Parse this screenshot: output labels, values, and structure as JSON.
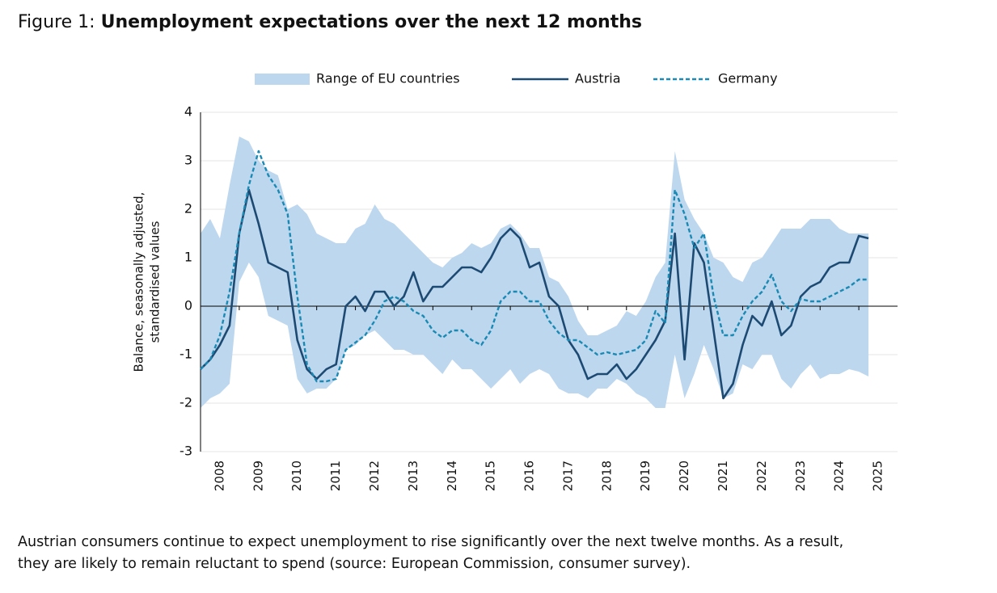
{
  "chart_data": {
    "type": "line",
    "title_prefix": "Figure 1: ",
    "title": "Unemployment expectations over the next 12 months",
    "ylabel": [
      "Balance, seasonally adjusted,",
      "standardised values"
    ],
    "caption": [
      "Austrian consumers continue to expect unemployment to rise significantly over the next twelve months. As a result,",
      "they are likely to remain reluctant to spend (source: European Commission, consumer survey)."
    ],
    "xlim": [
      2008,
      2026
    ],
    "xticks": [
      2008,
      2009,
      2010,
      2011,
      2012,
      2013,
      2014,
      2015,
      2016,
      2017,
      2018,
      2019,
      2020,
      2021,
      2022,
      2023,
      2024,
      2025
    ],
    "ylim": [
      -3,
      4
    ],
    "yticks": [
      -3,
      -2,
      -1,
      0,
      1,
      2,
      3,
      4
    ],
    "grid": true,
    "legend": "top",
    "x": [
      2008,
      2008.25,
      2008.5,
      2008.75,
      2009,
      2009.25,
      2009.5,
      2009.75,
      2010,
      2010.25,
      2010.5,
      2010.75,
      2011,
      2011.25,
      2011.5,
      2011.75,
      2012,
      2012.25,
      2012.5,
      2012.75,
      2013,
      2013.25,
      2013.5,
      2013.75,
      2014,
      2014.25,
      2014.5,
      2014.75,
      2015,
      2015.25,
      2015.5,
      2015.75,
      2016,
      2016.25,
      2016.5,
      2016.75,
      2017,
      2017.25,
      2017.5,
      2017.75,
      2018,
      2018.25,
      2018.5,
      2018.75,
      2019,
      2019.25,
      2019.5,
      2019.75,
      2020,
      2020.25,
      2020.5,
      2020.75,
      2021,
      2021.25,
      2021.5,
      2021.75,
      2022,
      2022.25,
      2022.5,
      2022.75,
      2023,
      2023.25,
      2023.5,
      2023.75,
      2024,
      2024.25,
      2024.5,
      2024.75,
      2025,
      2025.25
    ],
    "range": {
      "name": "Range of EU countries",
      "color": "#bdd7ee",
      "high": [
        1.5,
        1.8,
        1.4,
        2.5,
        3.5,
        3.4,
        3.0,
        2.8,
        2.7,
        2.0,
        2.1,
        1.9,
        1.5,
        1.4,
        1.3,
        1.3,
        1.6,
        1.7,
        2.1,
        1.8,
        1.7,
        1.5,
        1.3,
        1.1,
        0.9,
        0.8,
        1.0,
        1.1,
        1.3,
        1.2,
        1.3,
        1.6,
        1.7,
        1.5,
        1.2,
        1.2,
        0.6,
        0.5,
        0.2,
        -0.3,
        -0.6,
        -0.6,
        -0.5,
        -0.4,
        -0.1,
        -0.2,
        0.1,
        0.6,
        0.9,
        3.2,
        2.2,
        1.8,
        1.5,
        1.0,
        0.9,
        0.6,
        0.5,
        0.9,
        1.0,
        1.3,
        1.6,
        1.6,
        1.6,
        1.8,
        1.8,
        1.8,
        1.6,
        1.5,
        1.5,
        1.5
      ],
      "low": [
        -2.1,
        -1.9,
        -1.8,
        -1.6,
        0.5,
        0.9,
        0.6,
        -0.2,
        -0.3,
        -0.4,
        -1.5,
        -1.8,
        -1.7,
        -1.7,
        -1.5,
        -0.9,
        -0.8,
        -0.6,
        -0.5,
        -0.7,
        -0.9,
        -0.9,
        -1.0,
        -1.0,
        -1.2,
        -1.4,
        -1.1,
        -1.3,
        -1.3,
        -1.5,
        -1.7,
        -1.5,
        -1.3,
        -1.6,
        -1.4,
        -1.3,
        -1.4,
        -1.7,
        -1.8,
        -1.8,
        -1.9,
        -1.7,
        -1.7,
        -1.5,
        -1.6,
        -1.8,
        -1.9,
        -2.1,
        -2.1,
        -1.0,
        -1.9,
        -1.4,
        -0.8,
        -1.3,
        -1.9,
        -1.8,
        -1.2,
        -1.3,
        -1.0,
        -1.0,
        -1.5,
        -1.7,
        -1.4,
        -1.2,
        -1.5,
        -1.4,
        -1.4,
        -1.3,
        -1.35,
        -1.45
      ]
    },
    "series": [
      {
        "name": "Austria",
        "color": "#1d4a72",
        "style": "solid",
        "values": [
          -1.3,
          -1.1,
          -0.8,
          -0.4,
          1.5,
          2.4,
          1.7,
          0.9,
          0.8,
          0.7,
          -0.7,
          -1.3,
          -1.5,
          -1.3,
          -1.2,
          0.0,
          0.2,
          -0.1,
          0.3,
          0.3,
          0.0,
          0.2,
          0.7,
          0.1,
          0.4,
          0.4,
          0.6,
          0.8,
          0.8,
          0.7,
          1.0,
          1.4,
          1.6,
          1.4,
          0.8,
          0.9,
          0.2,
          0.0,
          -0.7,
          -1.0,
          -1.5,
          -1.4,
          -1.4,
          -1.2,
          -1.5,
          -1.3,
          -1.0,
          -0.7,
          -0.3,
          1.5,
          -1.1,
          1.3,
          0.9,
          -0.5,
          -1.9,
          -1.6,
          -0.8,
          -0.2,
          -0.4,
          0.1,
          -0.6,
          -0.4,
          0.2,
          0.4,
          0.5,
          0.8,
          0.9,
          0.9,
          1.45,
          1.4
        ]
      },
      {
        "name": "Germany",
        "color": "#1a8ab4",
        "style": "dashed",
        "values": [
          -1.3,
          -1.1,
          -0.6,
          0.3,
          1.5,
          2.5,
          3.2,
          2.7,
          2.4,
          1.9,
          0.2,
          -1.2,
          -1.55,
          -1.55,
          -1.5,
          -0.9,
          -0.75,
          -0.6,
          -0.3,
          0.1,
          0.2,
          0.1,
          -0.1,
          -0.2,
          -0.5,
          -0.65,
          -0.5,
          -0.5,
          -0.7,
          -0.8,
          -0.5,
          0.1,
          0.3,
          0.3,
          0.1,
          0.1,
          -0.3,
          -0.55,
          -0.7,
          -0.7,
          -0.85,
          -1.0,
          -0.95,
          -1.0,
          -0.95,
          -0.9,
          -0.7,
          -0.1,
          -0.35,
          2.4,
          1.9,
          1.2,
          1.5,
          0.2,
          -0.6,
          -0.6,
          -0.2,
          0.1,
          0.3,
          0.65,
          0.1,
          -0.1,
          0.15,
          0.1,
          0.1,
          0.2,
          0.3,
          0.4,
          0.55,
          0.55
        ]
      }
    ]
  }
}
